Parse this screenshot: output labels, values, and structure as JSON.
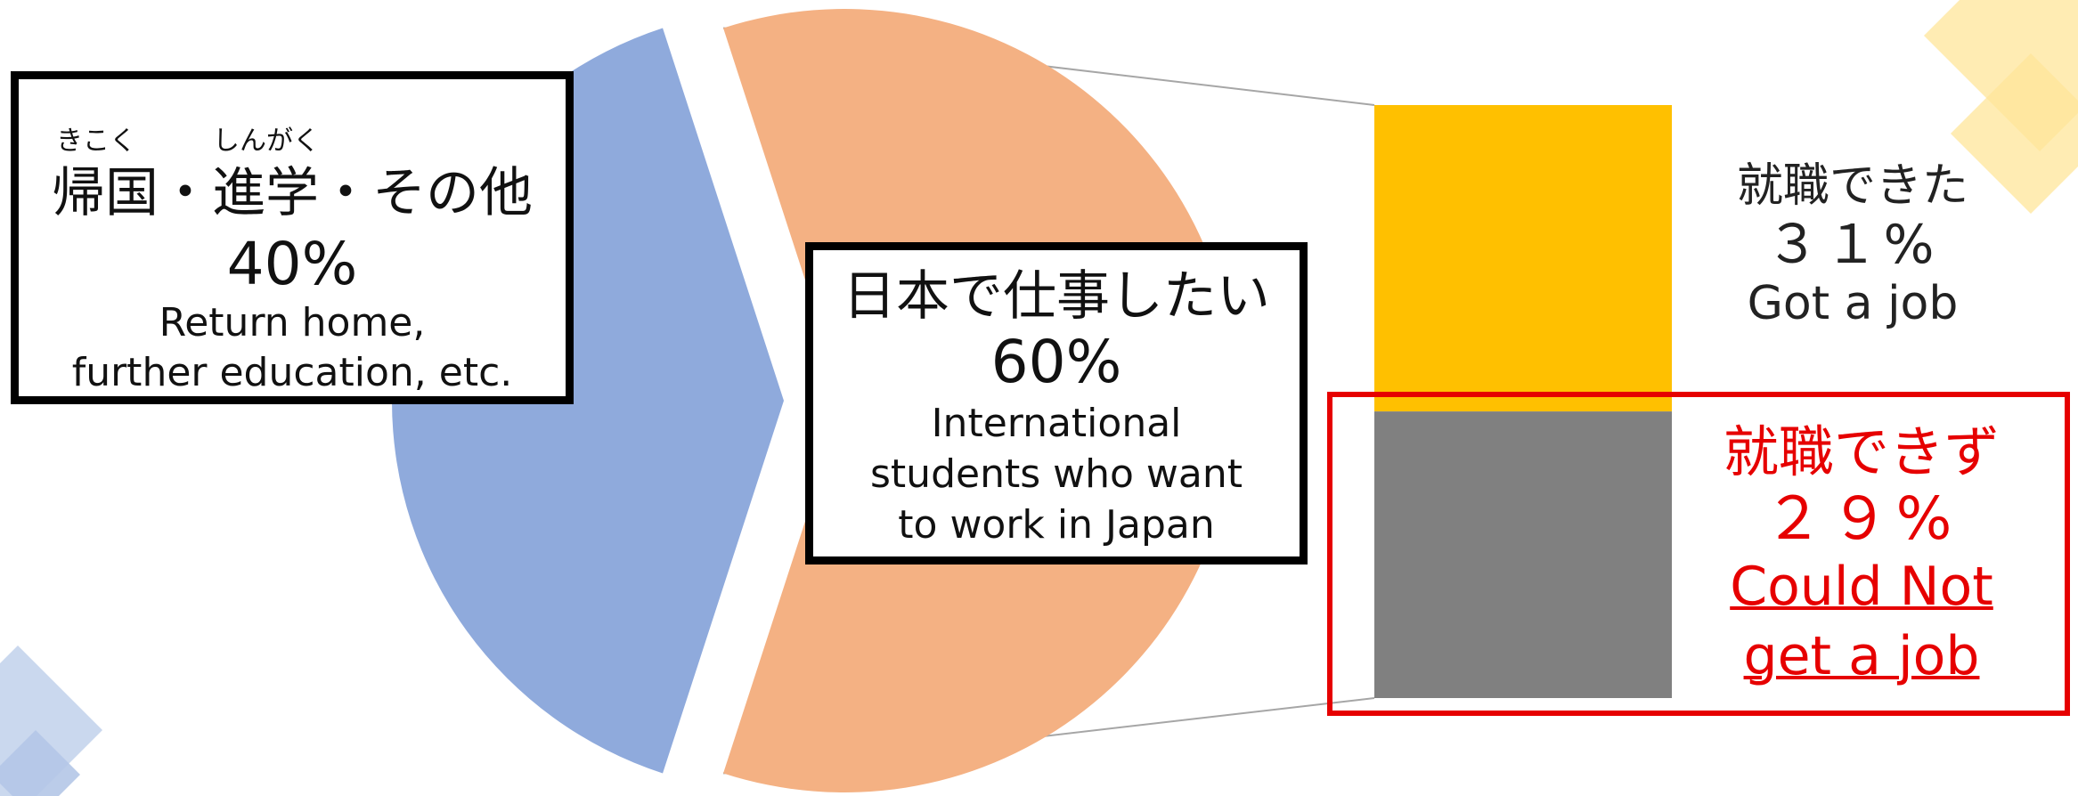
{
  "chart_data": {
    "type": "pie",
    "slices": [
      {
        "label_ja": "帰国・進学・その他",
        "ruby": [
          "きこく",
          "しんがく"
        ],
        "value": 40,
        "value_label": "40%",
        "label_en_lines": [
          "Return home,",
          "further education, etc."
        ],
        "color": "#8faadc"
      },
      {
        "label_ja": "日本で仕事したい",
        "value": 60,
        "value_label": "60%",
        "label_en_lines": [
          "International",
          "students who want",
          "to work in Japan"
        ],
        "color": "#f4b183"
      }
    ],
    "breakdown": {
      "of": "日本で仕事したい",
      "type": "stacked-bar",
      "segments": [
        {
          "label_ja": "就職できた",
          "value": 31,
          "value_label": "３１%",
          "label_en": "Got a job",
          "color": "#ffc000",
          "text_color": "#222222"
        },
        {
          "label_ja": "就職できず",
          "value": 29,
          "value_label": "２９%",
          "label_en_lines": [
            "Could Not",
            "get a job"
          ],
          "color": "#808080",
          "text_color": "#e60000",
          "highlighted": true
        }
      ]
    }
  },
  "colors": {
    "decor_gold": "#ffe699",
    "decor_blue": "#b4c7e7",
    "highlight_red": "#e60000",
    "connector": "#a6a6a6"
  }
}
